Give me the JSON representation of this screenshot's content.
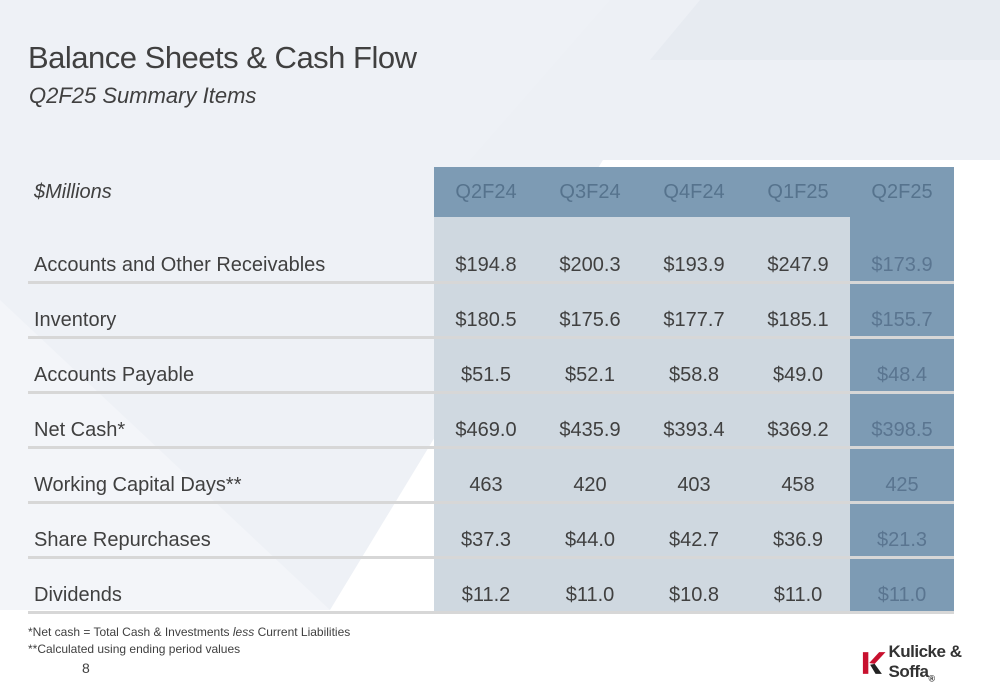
{
  "header": {
    "title": "Balance Sheets & Cash Flow",
    "subtitle": "Q2F25 Summary Items"
  },
  "table": {
    "unit_label": "$Millions",
    "columns": [
      "Q2F24",
      "Q3F24",
      "Q4F24",
      "Q1F25",
      "Q2F25"
    ],
    "rows": [
      {
        "label": "Accounts and Other Receivables",
        "values": [
          "$194.8",
          "$200.3",
          "$193.9",
          "$247.9",
          "$173.9"
        ]
      },
      {
        "label": "Inventory",
        "values": [
          "$180.5",
          "$175.6",
          "$177.7",
          "$185.1",
          "$155.7"
        ]
      },
      {
        "label": "Accounts Payable",
        "values": [
          "$51.5",
          "$52.1",
          "$58.8",
          "$49.0",
          "$48.4"
        ]
      },
      {
        "label": "Net Cash*",
        "values": [
          "$469.0",
          "$435.9",
          "$393.4",
          "$369.2",
          "$398.5"
        ]
      },
      {
        "label": "Working Capital Days**",
        "values": [
          "463",
          "420",
          "403",
          "458",
          "425"
        ]
      },
      {
        "label": "Share Repurchases",
        "values": [
          "$37.3",
          "$44.0",
          "$42.7",
          "$36.9",
          "$21.3"
        ]
      },
      {
        "label": "Dividends",
        "values": [
          "$11.2",
          "$11.0",
          "$10.8",
          "$11.0",
          "$11.0"
        ]
      }
    ]
  },
  "footnotes": {
    "net_cash_prefix": "*Net cash = Total Cash & Investments ",
    "net_cash_italic": "less",
    "net_cash_suffix": " Current Liabilities",
    "working_capital": "**Calculated using ending period values"
  },
  "page_number": "8",
  "logo": {
    "icon": "kulicke-soffa-k-logo-icon",
    "text": "Kulicke & Soffa",
    "registered": "®"
  },
  "colors": {
    "header_fill": "#7d9bb4",
    "cell_fill": "#cfd8e0",
    "text": "#404040",
    "logo_red": "#c8102e"
  }
}
